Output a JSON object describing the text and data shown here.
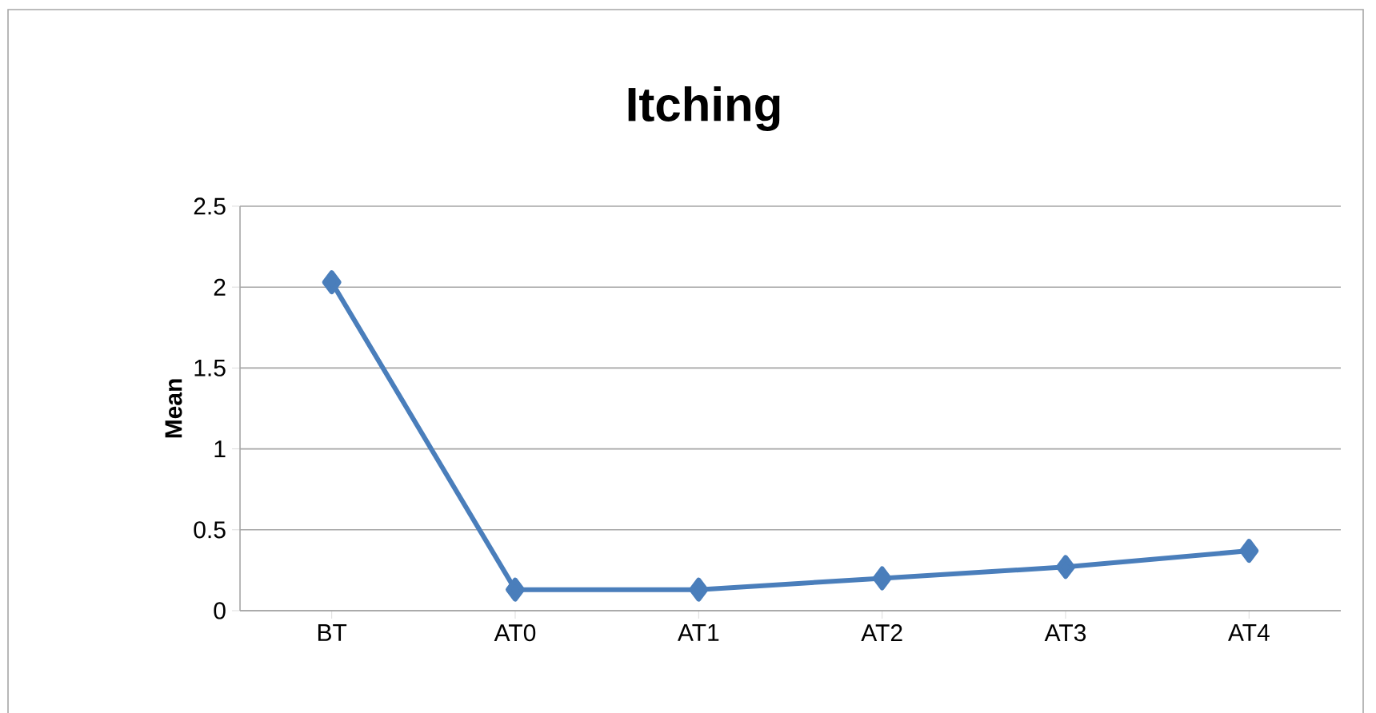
{
  "chart_data": {
    "type": "line",
    "title": "Itching",
    "ylabel": "Mean",
    "categories": [
      "BT",
      "AT0",
      "AT1",
      "AT2",
      "AT3",
      "AT4"
    ],
    "series": [
      {
        "color": "#4a7ebb",
        "values": [
          2.03,
          0.13,
          0.13,
          0.2,
          0.27,
          0.37
        ]
      }
    ],
    "ylim": [
      0,
      2.5
    ],
    "yticks": [
      0,
      0.5,
      1,
      1.5,
      2,
      2.5
    ],
    "grid": "y",
    "legend": false,
    "marker": "diamond",
    "line_style": "solid"
  }
}
